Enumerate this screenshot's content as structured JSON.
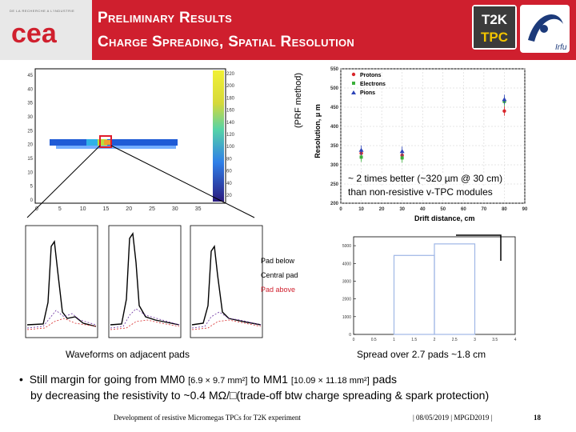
{
  "header": {
    "org_tagline": "DE LA RECHERCHE A L'INDUSTRIE",
    "org_logo": "cea",
    "title_line1": "Preliminary Results",
    "title_line2": "Charge Spreading, Spatial Resolution",
    "t2k_logo_line1": "T2K",
    "t2k_logo_line2": "TPC",
    "irfu_logo": "Irfu"
  },
  "heatmap": {
    "y_ticks": [
      "45",
      "40",
      "35",
      "30",
      "25",
      "20",
      "15",
      "10",
      "5",
      "0"
    ],
    "x_ticks": [
      "0",
      "5",
      "10",
      "15",
      "20",
      "25",
      "30",
      "35"
    ],
    "colorbar_ticks": [
      "220",
      "200",
      "180",
      "160",
      "140",
      "120",
      "100",
      "80",
      "60",
      "40",
      "20"
    ]
  },
  "resolution_plot": {
    "method_label": "(PRF method)",
    "y_axis_label": "Resolution, μ m",
    "x_axis_label": "Drift distance, cm",
    "legend": [
      "Protons",
      "Electrons",
      "Pions"
    ],
    "annotation_line1": "~ 2 times better (~320 µm @ 30 cm)",
    "annotation_line2": "than non-resistive v-TPC modules"
  },
  "chart_data": [
    {
      "type": "scatter",
      "title": "",
      "xlabel": "Drift distance, cm",
      "ylabel": "Resolution, μ m",
      "xlim": [
        0,
        90
      ],
      "ylim": [
        200,
        550
      ],
      "x_ticks": [
        "0",
        "10",
        "20",
        "30",
        "40",
        "50",
        "60",
        "70",
        "80",
        "90"
      ],
      "y_ticks": [
        "200",
        "250",
        "300",
        "350",
        "400",
        "450",
        "500",
        "550"
      ],
      "series": [
        {
          "name": "Protons",
          "color": "#d8262b",
          "x": [
            10,
            30,
            80
          ],
          "y": [
            330,
            325,
            440
          ]
        },
        {
          "name": "Electrons",
          "color": "#3ab03a",
          "x": [
            10,
            30,
            80
          ],
          "y": [
            320,
            318,
            465
          ]
        },
        {
          "name": "Pions",
          "color": "#2c43b8",
          "x": [
            10,
            30,
            80
          ],
          "y": [
            338,
            335,
            470
          ]
        }
      ]
    },
    {
      "type": "bar",
      "title": "",
      "xlabel": "",
      "ylabel": "",
      "categories": [
        "1",
        "2",
        "3",
        "4"
      ],
      "values": [
        0,
        4450,
        5100,
        0
      ],
      "ylim": [
        0,
        5500
      ],
      "y_ticks": [
        "0",
        "1000",
        "2000",
        "3000",
        "4000",
        "5000"
      ],
      "x_ticks": [
        "0",
        "0.5",
        "1",
        "1.5",
        "2",
        "2.5",
        "3",
        "3.5",
        "4"
      ]
    }
  ],
  "waveforms": {
    "legend": [
      "Pad below",
      "Central pad",
      "Pad above"
    ],
    "caption": "Waveforms on adjacent pads"
  },
  "spread": {
    "caption": "Spread over 2.7 pads ~1.8 cm"
  },
  "bullet": {
    "line1_text": "Still margin for going from MM0",
    "line1_dim0": "[6.9 × 9.7 mm²]",
    "line1_mid": "to MM1",
    "line1_dim1": "[10.09 × 11.18 mm²]",
    "line1_end": "pads",
    "line2": "by decreasing the resistivity to ~0.4 MΩ/□(trade-off btw charge spreading & spark protection)"
  },
  "footer": {
    "title": "Development of resistive Micromegas TPCs for T2K experiment",
    "date": "|  08/05/2019  |  MPGD2019  |",
    "page": "18"
  },
  "colors": {
    "header_red": "#cf1f2e",
    "header_grey": "#e8e8e8"
  }
}
